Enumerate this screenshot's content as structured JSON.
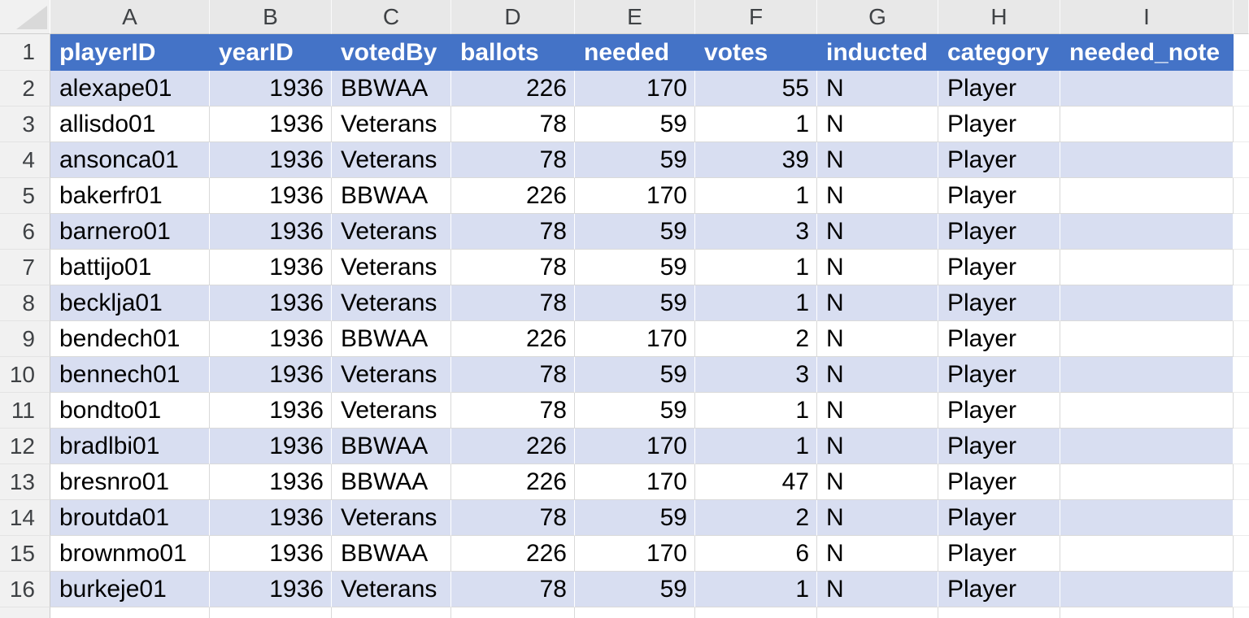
{
  "spreadsheet": {
    "column_letters": [
      "A",
      "B",
      "C",
      "D",
      "E",
      "F",
      "G",
      "H",
      "I"
    ],
    "row_numbers": [
      "1",
      "2",
      "3",
      "4",
      "5",
      "6",
      "7",
      "8",
      "9",
      "10",
      "11",
      "12",
      "13",
      "14",
      "15",
      "16"
    ],
    "table": {
      "columns": [
        {
          "letter": "A",
          "label": "playerID",
          "align": "left"
        },
        {
          "letter": "B",
          "label": "yearID",
          "align": "right"
        },
        {
          "letter": "C",
          "label": "votedBy",
          "align": "left"
        },
        {
          "letter": "D",
          "label": "ballots",
          "align": "right"
        },
        {
          "letter": "E",
          "label": "needed",
          "align": "right"
        },
        {
          "letter": "F",
          "label": "votes",
          "align": "right"
        },
        {
          "letter": "G",
          "label": "inducted",
          "align": "left"
        },
        {
          "letter": "H",
          "label": "category",
          "align": "left"
        },
        {
          "letter": "I",
          "label": "needed_note",
          "align": "left"
        }
      ],
      "rows": [
        {
          "row": "2",
          "banded": true,
          "cells": [
            "alexape01",
            "1936",
            "BBWAA",
            "226",
            "170",
            "55",
            "N",
            "Player",
            ""
          ]
        },
        {
          "row": "3",
          "banded": false,
          "cells": [
            "allisdo01",
            "1936",
            "Veterans",
            "78",
            "59",
            "1",
            "N",
            "Player",
            ""
          ]
        },
        {
          "row": "4",
          "banded": true,
          "cells": [
            "ansonca01",
            "1936",
            "Veterans",
            "78",
            "59",
            "39",
            "N",
            "Player",
            ""
          ]
        },
        {
          "row": "5",
          "banded": false,
          "cells": [
            "bakerfr01",
            "1936",
            "BBWAA",
            "226",
            "170",
            "1",
            "N",
            "Player",
            ""
          ]
        },
        {
          "row": "6",
          "banded": true,
          "cells": [
            "barnero01",
            "1936",
            "Veterans",
            "78",
            "59",
            "3",
            "N",
            "Player",
            ""
          ]
        },
        {
          "row": "7",
          "banded": false,
          "cells": [
            "battijo01",
            "1936",
            "Veterans",
            "78",
            "59",
            "1",
            "N",
            "Player",
            ""
          ]
        },
        {
          "row": "8",
          "banded": true,
          "cells": [
            "becklja01",
            "1936",
            "Veterans",
            "78",
            "59",
            "1",
            "N",
            "Player",
            ""
          ]
        },
        {
          "row": "9",
          "banded": false,
          "cells": [
            "bendech01",
            "1936",
            "BBWAA",
            "226",
            "170",
            "2",
            "N",
            "Player",
            ""
          ]
        },
        {
          "row": "10",
          "banded": true,
          "cells": [
            "bennech01",
            "1936",
            "Veterans",
            "78",
            "59",
            "3",
            "N",
            "Player",
            ""
          ]
        },
        {
          "row": "11",
          "banded": false,
          "cells": [
            "bondto01",
            "1936",
            "Veterans",
            "78",
            "59",
            "1",
            "N",
            "Player",
            ""
          ]
        },
        {
          "row": "12",
          "banded": true,
          "cells": [
            "bradlbi01",
            "1936",
            "BBWAA",
            "226",
            "170",
            "1",
            "N",
            "Player",
            ""
          ]
        },
        {
          "row": "13",
          "banded": false,
          "cells": [
            "bresnro01",
            "1936",
            "BBWAA",
            "226",
            "170",
            "47",
            "N",
            "Player",
            ""
          ]
        },
        {
          "row": "14",
          "banded": true,
          "cells": [
            "broutda01",
            "1936",
            "Veterans",
            "78",
            "59",
            "2",
            "N",
            "Player",
            ""
          ]
        },
        {
          "row": "15",
          "banded": false,
          "cells": [
            "brownmo01",
            "1936",
            "BBWAA",
            "226",
            "170",
            "6",
            "N",
            "Player",
            ""
          ]
        },
        {
          "row": "16",
          "banded": true,
          "cells": [
            "burkeje01",
            "1936",
            "Veterans",
            "78",
            "59",
            "1",
            "N",
            "Player",
            ""
          ]
        }
      ]
    },
    "colors": {
      "header_bg": "#4473C7",
      "header_text": "#FFFFFF",
      "band_fill": "#D8DEF1",
      "white_fill": "#FFFFFF",
      "gridline": "#D9D9D9",
      "frame_bg": "#E8E8E8",
      "gutter_bg": "#F1F1F1",
      "frame_text": "#3F4245"
    }
  }
}
